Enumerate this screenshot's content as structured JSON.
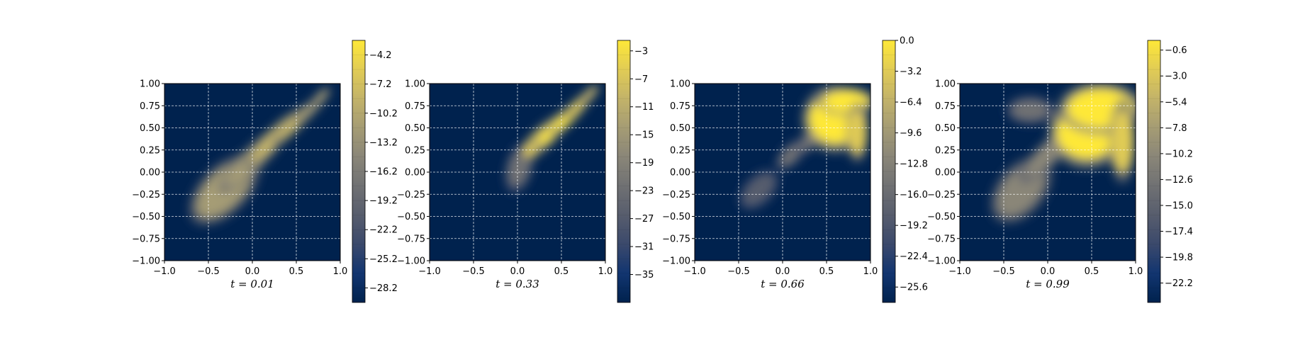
{
  "chart_data": [
    {
      "type": "heatmap",
      "caption": "t = 0.01",
      "xlim": [
        -1.0,
        1.0
      ],
      "ylim": [
        -1.0,
        1.0
      ],
      "x_ticks": [
        "−1.0",
        "−0.5",
        "0.0",
        "0.5",
        "1.0"
      ],
      "y_ticks": [
        "−1.00",
        "−0.75",
        "−0.50",
        "−0.25",
        "0.00",
        "0.25",
        "0.50",
        "0.75",
        "1.00"
      ],
      "grid": true,
      "colorbar": {
        "range": [
          -29.7,
          -2.7
        ],
        "ticks": [
          -4.2,
          -7.2,
          -10.2,
          -13.2,
          -16.2,
          -19.2,
          -22.2,
          -25.2,
          -28.2
        ],
        "tick_labels": [
          "−4.2",
          "−7.2",
          "−10.2",
          "−13.2",
          "−16.2",
          "−19.2",
          "−22.2",
          "−25.2",
          "−28.2"
        ]
      },
      "blobs": [
        {
          "x": -0.32,
          "y": -0.2,
          "rx": 0.4,
          "ry": 0.2,
          "angle": -45,
          "level": 0.62
        },
        {
          "x": 0.0,
          "y": 0.14,
          "rx": 0.42,
          "ry": 0.1,
          "angle": -45,
          "level": 0.72
        },
        {
          "x": 0.25,
          "y": 0.38,
          "rx": 0.38,
          "ry": 0.08,
          "angle": -45,
          "level": 0.78
        },
        {
          "x": 0.5,
          "y": 0.57,
          "rx": 0.3,
          "ry": 0.06,
          "angle": -45,
          "level": 0.8
        },
        {
          "x": 0.68,
          "y": 0.73,
          "rx": 0.2,
          "ry": 0.045,
          "angle": -45,
          "level": 0.72
        },
        {
          "x": 0.78,
          "y": 0.85,
          "rx": 0.12,
          "ry": 0.04,
          "angle": -45,
          "level": 0.62
        }
      ]
    },
    {
      "type": "heatmap",
      "caption": "t = 0.33",
      "xlim": [
        -1.0,
        1.0
      ],
      "ylim": [
        -1.0,
        1.0
      ],
      "x_ticks": [
        "−1.0",
        "−0.5",
        "0.0",
        "0.5",
        "1.0"
      ],
      "y_ticks": [
        "−1.00",
        "−0.75",
        "−0.50",
        "−0.25",
        "0.00",
        "0.25",
        "0.50",
        "0.75",
        "1.00"
      ],
      "grid": true,
      "colorbar": {
        "range": [
          -39,
          -1.5
        ],
        "ticks": [
          -3,
          -7,
          -11,
          -15,
          -19,
          -23,
          -27,
          -31,
          -35
        ],
        "tick_labels": [
          "−3",
          "−7",
          "−11",
          "−15",
          "−19",
          "−23",
          "−27",
          "−31",
          "−35"
        ]
      },
      "blobs": [
        {
          "x": 0.02,
          "y": 0.05,
          "rx": 0.12,
          "ry": 0.22,
          "angle": 15,
          "level": 0.4
        },
        {
          "x": 0.28,
          "y": 0.38,
          "rx": 0.28,
          "ry": 0.09,
          "angle": -45,
          "level": 0.9
        },
        {
          "x": 0.45,
          "y": 0.52,
          "rx": 0.3,
          "ry": 0.07,
          "angle": -45,
          "level": 0.95
        },
        {
          "x": 0.6,
          "y": 0.65,
          "rx": 0.26,
          "ry": 0.06,
          "angle": -45,
          "level": 0.95
        },
        {
          "x": 0.72,
          "y": 0.78,
          "rx": 0.2,
          "ry": 0.05,
          "angle": -45,
          "level": 0.9
        },
        {
          "x": 0.82,
          "y": 0.88,
          "rx": 0.12,
          "ry": 0.04,
          "angle": -45,
          "level": 0.8
        }
      ]
    },
    {
      "type": "heatmap",
      "caption": "t = 0.66",
      "xlim": [
        -1.0,
        1.0
      ],
      "ylim": [
        -1.0,
        1.0
      ],
      "x_ticks": [
        "−1.0",
        "−0.5",
        "0.0",
        "0.5",
        "1.0"
      ],
      "y_ticks": [
        "−1.00",
        "−0.75",
        "−0.50",
        "−0.25",
        "0.00",
        "0.25",
        "0.50",
        "0.75",
        "1.00"
      ],
      "grid": true,
      "colorbar": {
        "range": [
          -27.2,
          0.0
        ],
        "ticks": [
          0.0,
          -3.2,
          -6.4,
          -9.6,
          -12.8,
          -16.0,
          -19.2,
          -22.4,
          -25.6
        ],
        "tick_labels": [
          "0.0",
          "−3.2",
          "−6.4",
          "−9.6",
          "−12.8",
          "−16.0",
          "−19.2",
          "−22.4",
          "−25.6"
        ]
      },
      "blobs": [
        {
          "x": -0.27,
          "y": -0.2,
          "rx": 0.22,
          "ry": 0.12,
          "angle": -45,
          "level": 0.38
        },
        {
          "x": 0.1,
          "y": 0.2,
          "rx": 0.18,
          "ry": 0.08,
          "angle": -45,
          "level": 0.4
        },
        {
          "x": 0.3,
          "y": 0.35,
          "rx": 0.15,
          "ry": 0.07,
          "angle": -45,
          "level": 0.45
        },
        {
          "x": 0.6,
          "y": 0.6,
          "rx": 0.3,
          "ry": 0.28,
          "angle": 0,
          "level": 1.0
        },
        {
          "x": 0.72,
          "y": 0.8,
          "rx": 0.26,
          "ry": 0.12,
          "angle": 0,
          "level": 1.0
        },
        {
          "x": 0.85,
          "y": 0.45,
          "rx": 0.1,
          "ry": 0.25,
          "angle": 0,
          "level": 0.85
        }
      ]
    },
    {
      "type": "heatmap",
      "caption": "t = 0.99",
      "xlim": [
        -1.0,
        1.0
      ],
      "ylim": [
        -1.0,
        1.0
      ],
      "x_ticks": [
        "−1.0",
        "−0.5",
        "0.0",
        "0.5",
        "1.0"
      ],
      "y_ticks": [
        "−1.00",
        "−0.75",
        "−0.50",
        "−0.25",
        "0.00",
        "0.25",
        "0.50",
        "0.75",
        "1.00"
      ],
      "grid": true,
      "colorbar": {
        "range": [
          -24.0,
          0.3
        ],
        "ticks": [
          -0.6,
          -3.0,
          -5.4,
          -7.8,
          -10.2,
          -12.6,
          -15.0,
          -17.4,
          -19.8,
          -22.2
        ],
        "tick_labels": [
          "−0.6",
          "−3.0",
          "−5.4",
          "−7.8",
          "−10.2",
          "−12.6",
          "−15.0",
          "−17.4",
          "−19.8",
          "−22.2"
        ]
      },
      "blobs": [
        {
          "x": -0.3,
          "y": -0.2,
          "rx": 0.35,
          "ry": 0.2,
          "angle": -50,
          "level": 0.55
        },
        {
          "x": -0.2,
          "y": 0.7,
          "rx": 0.22,
          "ry": 0.12,
          "angle": 0,
          "level": 0.45
        },
        {
          "x": 0.0,
          "y": 0.2,
          "rx": 0.35,
          "ry": 0.1,
          "angle": -45,
          "level": 0.6
        },
        {
          "x": 0.45,
          "y": 0.45,
          "rx": 0.35,
          "ry": 0.3,
          "angle": 0,
          "level": 0.95
        },
        {
          "x": 0.6,
          "y": 0.72,
          "rx": 0.38,
          "ry": 0.22,
          "angle": 0,
          "level": 1.0
        },
        {
          "x": 0.85,
          "y": 0.35,
          "rx": 0.12,
          "ry": 0.35,
          "angle": 0,
          "level": 0.85
        }
      ]
    }
  ],
  "colors": {
    "background": "#00224e",
    "grid": "#ffffff",
    "colormap": [
      "#00224e",
      "#123570",
      "#3b496c",
      "#575d6d",
      "#707173",
      "#8a8678",
      "#a59c74",
      "#c3b369",
      "#e1cc55",
      "#fee838"
    ]
  }
}
